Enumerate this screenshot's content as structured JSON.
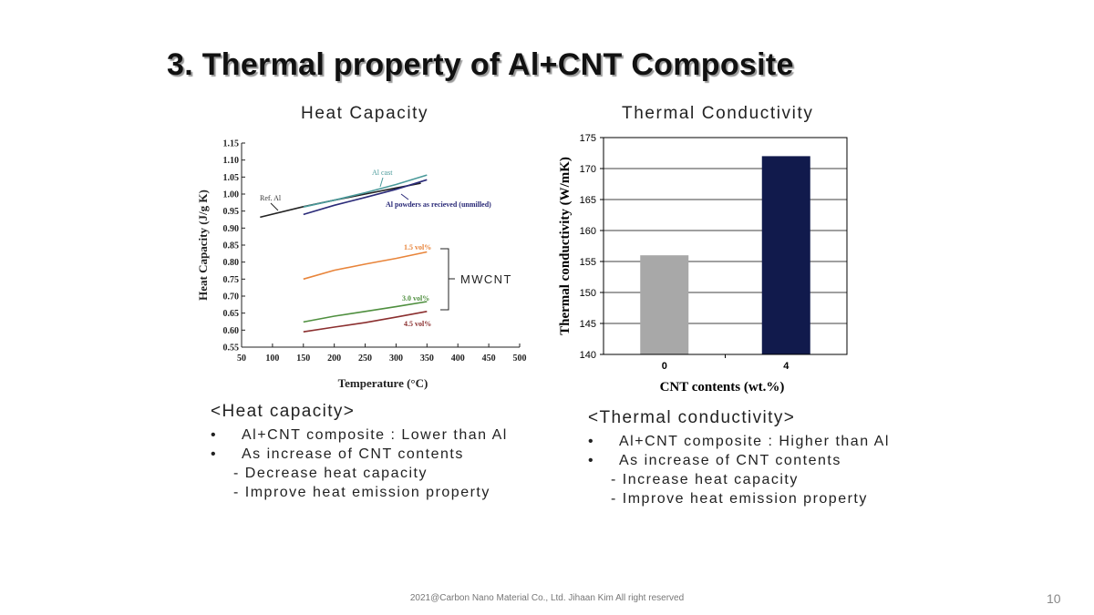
{
  "slide": {
    "title": "3. Thermal property of Al+CNT Composite",
    "footer": "2021@Carbon Nano Material Co., Ltd. Jihaan Kim All right reserved",
    "page_number": "10"
  },
  "heat_capacity": {
    "caption": "Heat Capacity",
    "notes_heading": "<Heat capacity>",
    "bullets": [
      "Al+CNT composite : Lower than Al",
      "As increase of CNT contents"
    ],
    "sub_points": [
      "- Decrease heat capacity",
      "- Improve heat emission property"
    ]
  },
  "thermal_conductivity": {
    "caption": "Thermal Conductivity",
    "notes_heading": "<Thermal conductivity>",
    "bullets": [
      "Al+CNT composite : Higher than Al",
      "As increase of CNT contents"
    ],
    "sub_points": [
      "- Increase heat capacity",
      "- Improve heat emission property"
    ]
  },
  "chart_data": [
    {
      "type": "line",
      "xlabel": "Temperature (°C)",
      "ylabel": "Heat Capacity (J/g K)",
      "xlim": [
        50,
        500
      ],
      "ylim": [
        0.55,
        1.15
      ],
      "xticks": [
        50,
        100,
        150,
        200,
        250,
        300,
        350,
        400,
        450,
        500
      ],
      "yticks": [
        0.55,
        0.6,
        0.65,
        0.7,
        0.75,
        0.8,
        0.85,
        0.9,
        0.95,
        1.0,
        1.05,
        1.1,
        1.15
      ],
      "grid": false,
      "bracket_label": "MWCNT",
      "series": [
        {
          "name": "Ref. Al",
          "color": "#222222",
          "x": [
            80,
            150,
            200,
            250,
            300,
            340
          ],
          "y": [
            0.932,
            0.963,
            0.982,
            1.0,
            1.018,
            1.032
          ]
        },
        {
          "name": "Al cast",
          "color": "#4a9a9a",
          "x": [
            150,
            200,
            250,
            300,
            350
          ],
          "y": [
            0.962,
            0.982,
            1.004,
            1.028,
            1.056
          ]
        },
        {
          "name": "Al powders as recieved (unmilled)",
          "color": "#2a2a78",
          "x": [
            150,
            200,
            250,
            300,
            350
          ],
          "y": [
            0.94,
            0.967,
            0.99,
            1.014,
            1.042
          ]
        },
        {
          "name": "1.5 vol%",
          "color": "#e8843a",
          "x": [
            150,
            200,
            250,
            300,
            350
          ],
          "y": [
            0.75,
            0.776,
            0.794,
            0.811,
            0.83
          ]
        },
        {
          "name": "3.0 vol%",
          "color": "#4f8f3f",
          "x": [
            150,
            200,
            250,
            300,
            350
          ],
          "y": [
            0.624,
            0.641,
            0.655,
            0.669,
            0.684
          ]
        },
        {
          "name": "4.5 vol%",
          "color": "#8b2f2f",
          "x": [
            150,
            200,
            250,
            300,
            350
          ],
          "y": [
            0.595,
            0.609,
            0.622,
            0.638,
            0.655
          ]
        }
      ]
    },
    {
      "type": "bar",
      "categories": [
        "0",
        "4"
      ],
      "values": [
        156,
        172
      ],
      "colors": [
        "#a8a8a8",
        "#111a4c"
      ],
      "xlabel": "CNT contents (wt.%)",
      "ylabel": "Thermal conductivity (W/mK)",
      "ylim": [
        140,
        175
      ],
      "yticks": [
        140,
        145,
        150,
        155,
        160,
        165,
        170,
        175
      ],
      "grid": true
    }
  ]
}
